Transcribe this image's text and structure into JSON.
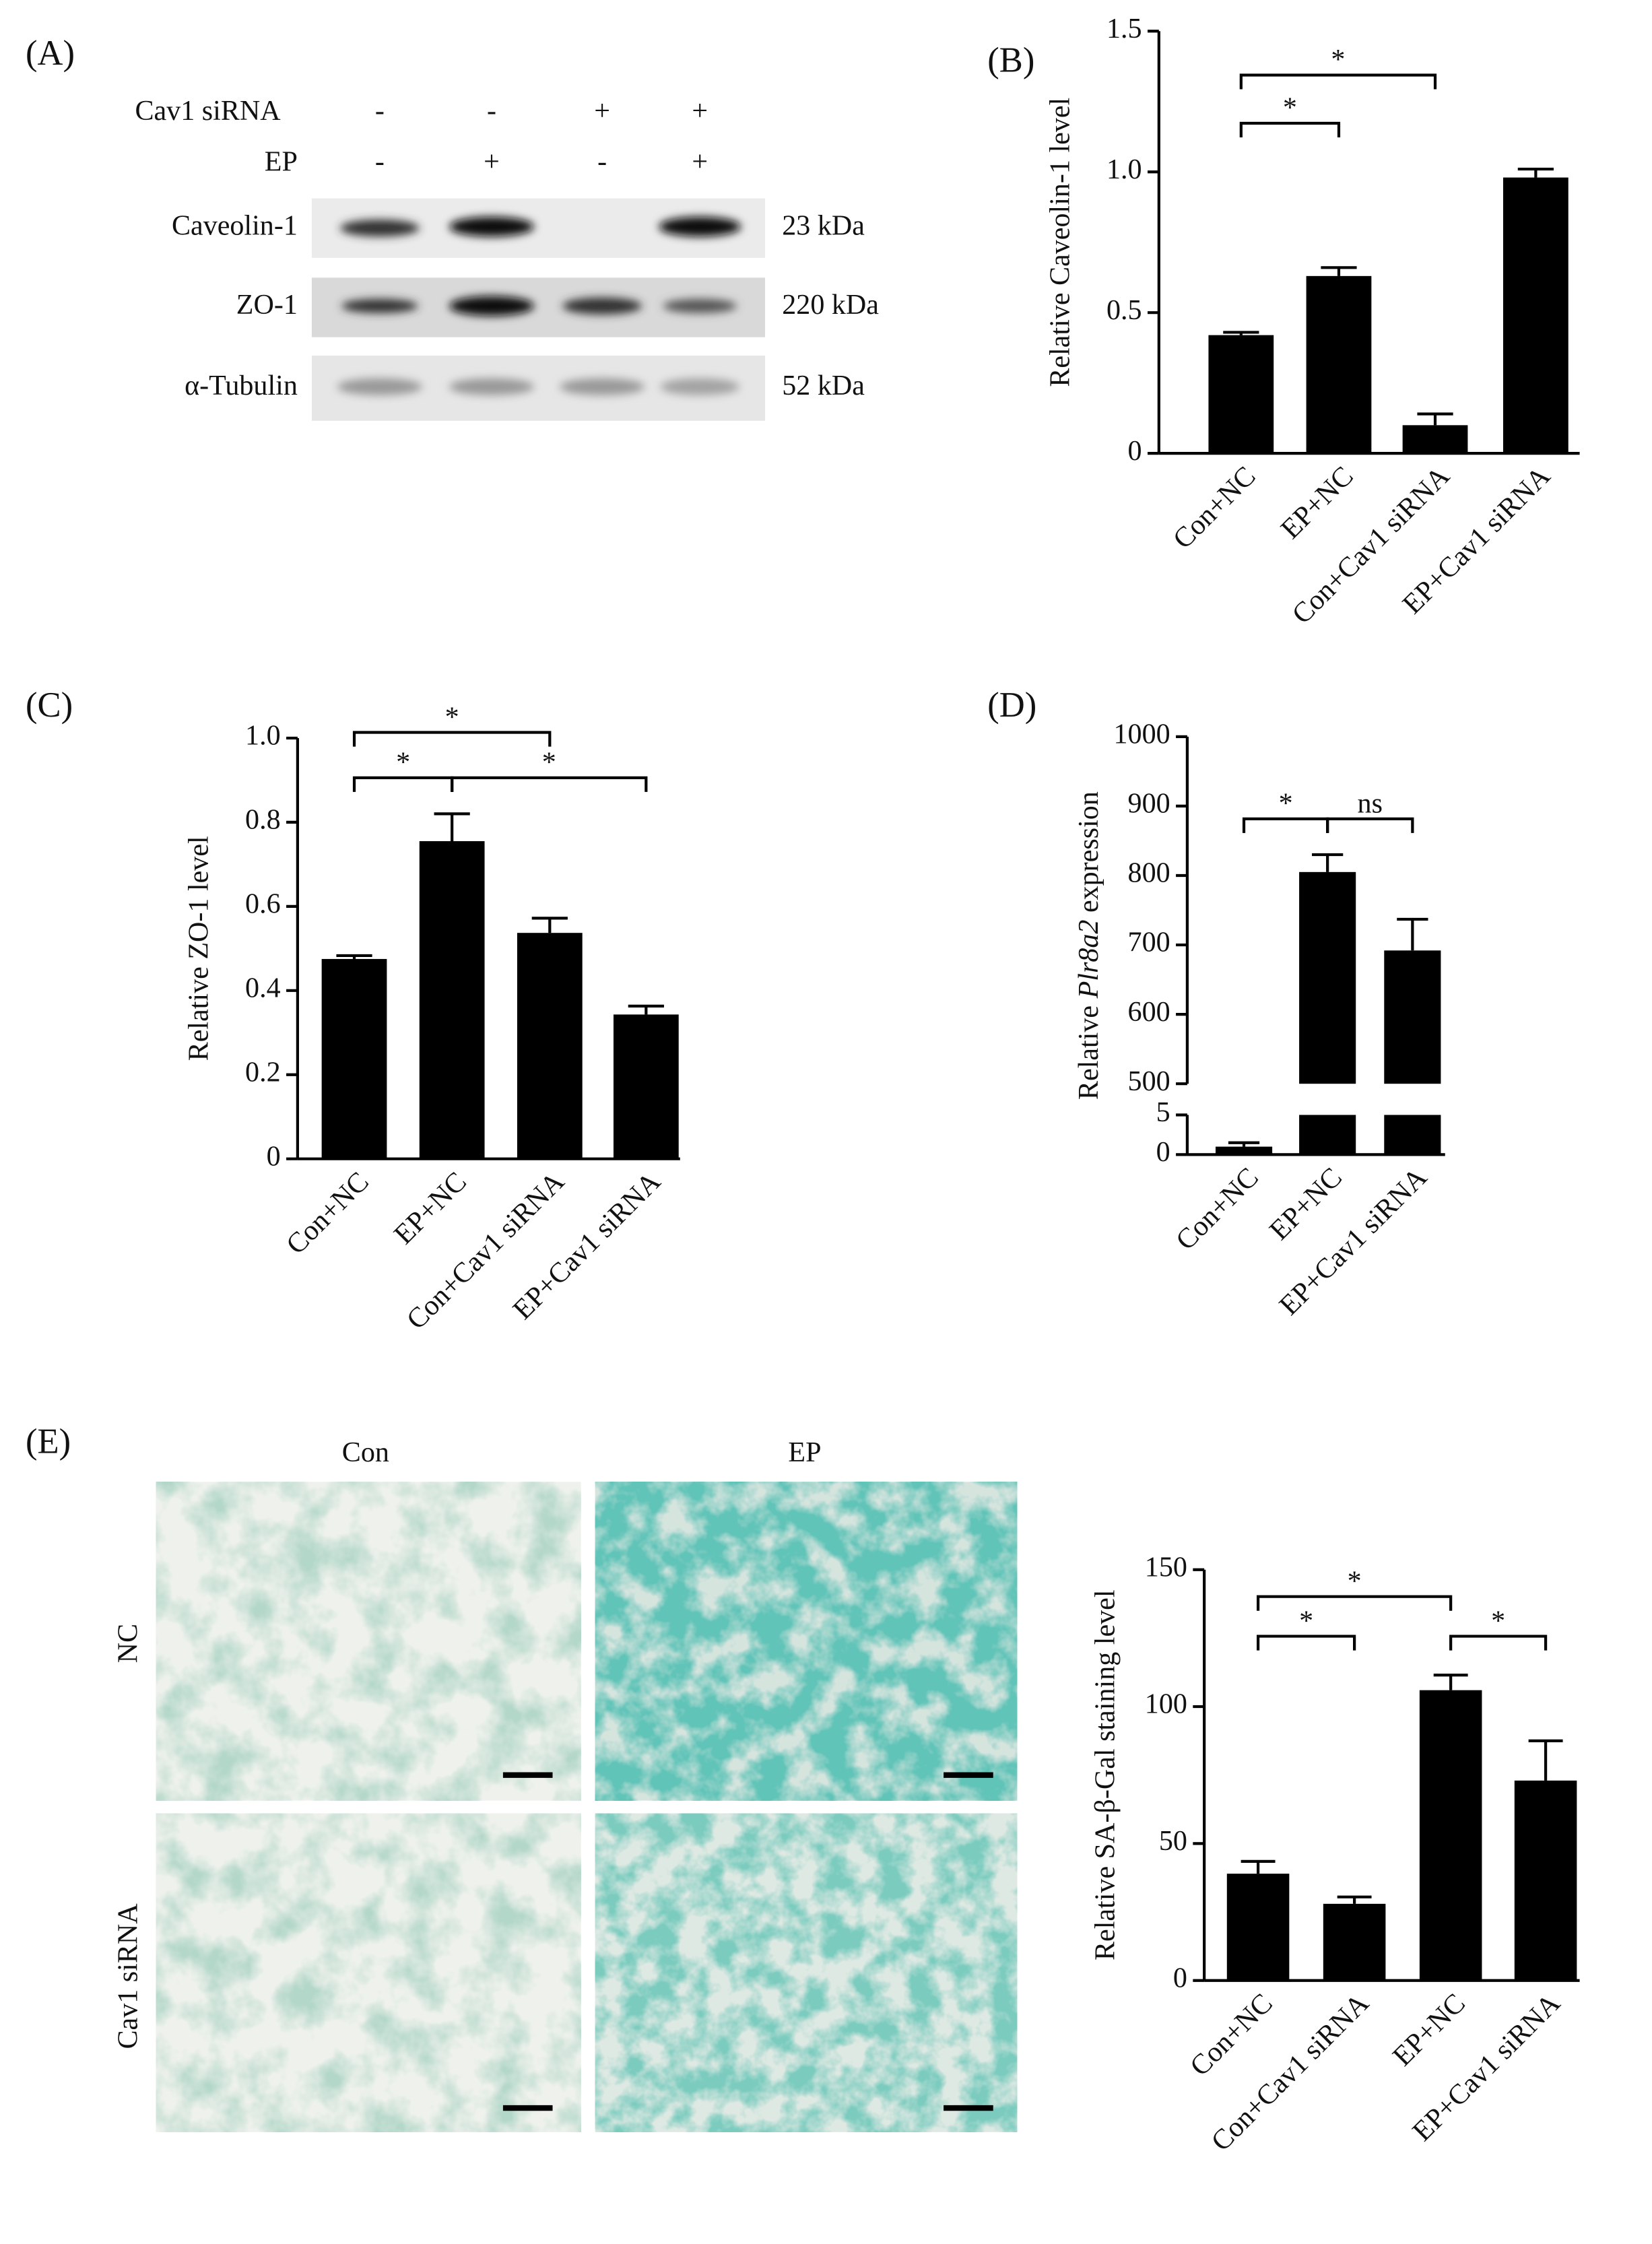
{
  "figure": {
    "panel_labels": [
      "(A)",
      "(B)",
      "(C)",
      "(D)",
      "(E)"
    ],
    "blot": {
      "conditions": [
        {
          "name": "Cav1 siRNA",
          "signs": [
            "-",
            "-",
            "+",
            "+"
          ]
        },
        {
          "name": "EP",
          "signs": [
            "-",
            "+",
            "-",
            "+"
          ]
        }
      ],
      "bands": [
        {
          "protein": "Caveolin-1",
          "size": "23 kDa"
        },
        {
          "protein": "ZO-1",
          "size": "220 kDa"
        },
        {
          "protein": "α-Tubulin",
          "size": "52 kDa"
        }
      ]
    },
    "micrographs": {
      "columns": [
        "Con",
        "EP"
      ],
      "rows": [
        "NC",
        "Cav1 siRNA"
      ]
    }
  },
  "chart_data": [
    {
      "type": "bar",
      "ylabel": "Relative Caveolin-1 level",
      "categories": [
        "Con+NC",
        "EP+NC",
        "Con+Cav1 siRNA",
        "EP+Cav1 siRNA"
      ],
      "values": [
        0.42,
        0.63,
        0.1,
        0.98
      ],
      "errors": [
        0.01,
        0.03,
        0.04,
        0.03
      ],
      "color": "#000000",
      "ylim": [
        0,
        1.5
      ],
      "yticks": [
        0,
        0.5,
        {
          "value": 1,
          "label": "1.0"
        },
        1.5
      ],
      "significance": [
        {
          "pair": [
            0,
            1
          ],
          "label": "*"
        },
        {
          "pair": [
            0,
            2
          ],
          "label": "*"
        }
      ]
    },
    {
      "type": "bar",
      "ylabel": "Relative ZO-1 level",
      "categories": [
        "Con+NC",
        "EP+NC",
        "Con+Cav1 siRNA",
        "EP+Cav1 siRNA"
      ],
      "values": [
        0.475,
        0.755,
        0.537,
        0.343
      ],
      "errors": [
        0.008,
        0.065,
        0.035,
        0.02
      ],
      "color": "#000000",
      "ylim": [
        0,
        1
      ],
      "yticks": [
        0,
        0.2,
        0.4,
        0.6,
        0.8,
        {
          "value": 1,
          "label": "1.0"
        }
      ],
      "significance": [
        {
          "pair": [
            0,
            1
          ],
          "label": "*"
        },
        {
          "pair": [
            0,
            2
          ],
          "label": "*"
        },
        {
          "pair": [
            1,
            3
          ],
          "label": "*"
        }
      ]
    },
    {
      "type": "bar",
      "ylabel": [
        "Relative ",
        "Plr8a2",
        " expression"
      ],
      "ylabel_italic": [
        false,
        true,
        false
      ],
      "categories": [
        "Con+NC",
        "EP+NC",
        "EP+Cav1 siRNA"
      ],
      "values": [
        1,
        805,
        692
      ],
      "errors": [
        0.5,
        25,
        45
      ],
      "color": "#000000",
      "segments": [
        {
          "ylim": [
            0,
            5
          ],
          "yticks": [
            0,
            5
          ]
        },
        {
          "ylim": [
            500,
            1000
          ],
          "yticks": [
            500,
            600,
            700,
            800,
            900,
            1000
          ]
        }
      ],
      "significance": [
        {
          "pair": [
            0,
            1
          ],
          "label": "*"
        },
        {
          "pair": [
            1,
            2
          ],
          "label": "ns"
        }
      ]
    },
    {
      "type": "bar",
      "ylabel": "Relative SA-β-Gal staining level",
      "categories": [
        "Con+NC",
        "Con+Cav1 siRNA",
        "EP+NC",
        "EP+Cav1 siRNA"
      ],
      "values": [
        39,
        28,
        106,
        73
      ],
      "errors": [
        4.5,
        2.5,
        5.5,
        14.5
      ],
      "color": "#000000",
      "ylim": [
        0,
        150
      ],
      "yticks": [
        0,
        50,
        100,
        150
      ],
      "significance": [
        {
          "pair": [
            0,
            1
          ],
          "label": "*"
        },
        {
          "pair": [
            0,
            2
          ],
          "label": "*"
        },
        {
          "pair": [
            2,
            3
          ],
          "label": "*"
        }
      ]
    }
  ]
}
